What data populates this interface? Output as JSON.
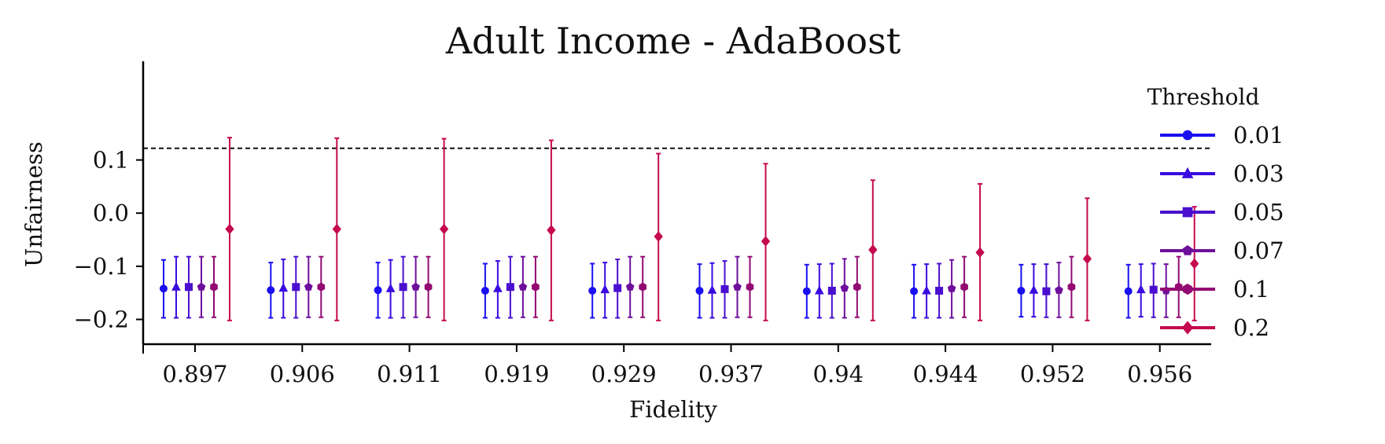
{
  "chart_data": {
    "type": "errorbar",
    "title": "Adult Income - AdaBoost",
    "xlabel": "Fidelity",
    "ylabel": "Unfairness",
    "categories": [
      "0.897",
      "0.906",
      "0.911",
      "0.919",
      "0.929",
      "0.937",
      "0.94",
      "0.944",
      "0.952",
      "0.956"
    ],
    "ylim": [
      -0.22,
      0.16
    ],
    "yticks": [
      -0.2,
      -0.1,
      0.0,
      0.1
    ],
    "ytick_labels": [
      "−0.2",
      "−0.1",
      "0.0",
      "0.1"
    ],
    "reference_line": {
      "y": 0.122,
      "style": "dashed",
      "color": "#000000"
    },
    "grid": false,
    "legend": {
      "title": "Threshold",
      "placement": "outside-right"
    },
    "series": [
      {
        "name": "0.01",
        "color": "#1a0ff0",
        "marker": "circle",
        "values": [
          -0.142,
          -0.145,
          -0.145,
          -0.146,
          -0.146,
          -0.146,
          -0.147,
          -0.147,
          -0.146,
          -0.147
        ],
        "lower": [
          -0.197,
          -0.197,
          -0.197,
          -0.197,
          -0.197,
          -0.197,
          -0.197,
          -0.197,
          -0.195,
          -0.197
        ],
        "upper": [
          -0.088,
          -0.093,
          -0.093,
          -0.095,
          -0.095,
          -0.096,
          -0.097,
          -0.097,
          -0.097,
          -0.097
        ]
      },
      {
        "name": "0.03",
        "color": "#3a0be0",
        "marker": "triangle",
        "values": [
          -0.139,
          -0.141,
          -0.142,
          -0.142,
          -0.144,
          -0.145,
          -0.146,
          -0.146,
          -0.145,
          -0.144
        ],
        "lower": [
          -0.197,
          -0.197,
          -0.197,
          -0.197,
          -0.197,
          -0.197,
          -0.197,
          -0.197,
          -0.195,
          -0.195
        ],
        "upper": [
          -0.082,
          -0.087,
          -0.088,
          -0.09,
          -0.093,
          -0.094,
          -0.096,
          -0.096,
          -0.096,
          -0.096
        ]
      },
      {
        "name": "0.05",
        "color": "#4a0fcf",
        "marker": "square",
        "values": [
          -0.139,
          -0.139,
          -0.139,
          -0.139,
          -0.141,
          -0.143,
          -0.146,
          -0.146,
          -0.147,
          -0.144
        ],
        "lower": [
          -0.197,
          -0.197,
          -0.197,
          -0.197,
          -0.197,
          -0.197,
          -0.197,
          -0.197,
          -0.196,
          -0.196
        ],
        "upper": [
          -0.082,
          -0.082,
          -0.082,
          -0.082,
          -0.087,
          -0.09,
          -0.095,
          -0.095,
          -0.096,
          -0.095
        ]
      },
      {
        "name": "0.07",
        "color": "#6e0f9c",
        "marker": "pentagon",
        "values": [
          -0.139,
          -0.139,
          -0.139,
          -0.139,
          -0.139,
          -0.139,
          -0.141,
          -0.142,
          -0.145,
          -0.146
        ],
        "lower": [
          -0.196,
          -0.196,
          -0.196,
          -0.196,
          -0.196,
          -0.196,
          -0.197,
          -0.197,
          -0.196,
          -0.196
        ],
        "upper": [
          -0.082,
          -0.082,
          -0.082,
          -0.082,
          -0.082,
          -0.082,
          -0.086,
          -0.088,
          -0.093,
          -0.096
        ]
      },
      {
        "name": "0.1",
        "color": "#920a72",
        "marker": "hexagon",
        "values": [
          -0.139,
          -0.139,
          -0.139,
          -0.139,
          -0.139,
          -0.139,
          -0.139,
          -0.139,
          -0.139,
          -0.139
        ],
        "lower": [
          -0.196,
          -0.196,
          -0.196,
          -0.196,
          -0.196,
          -0.196,
          -0.196,
          -0.196,
          -0.196,
          -0.196
        ],
        "upper": [
          -0.082,
          -0.082,
          -0.082,
          -0.082,
          -0.082,
          -0.082,
          -0.082,
          -0.082,
          -0.082,
          -0.082
        ]
      },
      {
        "name": "0.2",
        "color": "#c50a4f",
        "marker": "diamond",
        "values": [
          -0.03,
          -0.03,
          -0.03,
          -0.032,
          -0.044,
          -0.053,
          -0.069,
          -0.074,
          -0.086,
          -0.095
        ],
        "lower": [
          -0.202,
          -0.202,
          -0.202,
          -0.202,
          -0.202,
          -0.202,
          -0.202,
          -0.202,
          -0.202,
          -0.202
        ],
        "upper": [
          0.142,
          0.141,
          0.14,
          0.137,
          0.112,
          0.093,
          0.062,
          0.055,
          0.028,
          0.012
        ]
      }
    ]
  }
}
